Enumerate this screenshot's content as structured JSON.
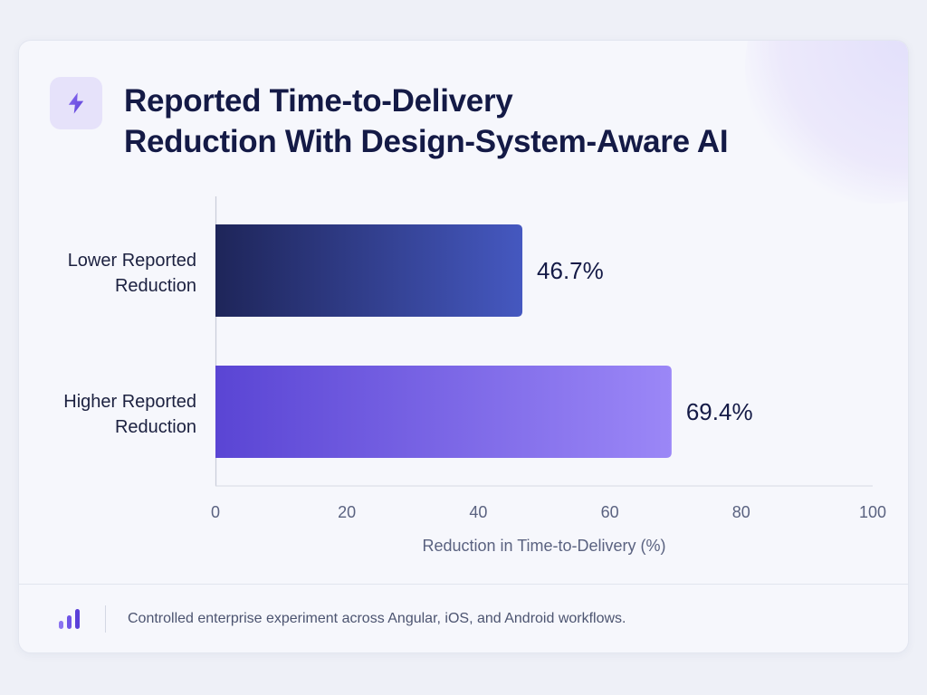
{
  "title_lines": [
    "Reported Time-to-Delivery",
    "Reduction With Design-System-Aware AI"
  ],
  "header_icon": "lightning-bolt-icon",
  "footer": {
    "icon": "bar-chart-icon",
    "note": "Controlled enterprise experiment across Angular, iOS, and Android workflows."
  },
  "colors": {
    "bar_lower": [
      "#1e2559",
      "#4558c0"
    ],
    "bar_higher": [
      "#5a45d4",
      "#9b87f7"
    ],
    "accent": "#7357e8",
    "title": "#141a46"
  },
  "chart_data": {
    "type": "bar",
    "orientation": "horizontal",
    "title": "Reported Time-to-Delivery Reduction With Design-System-Aware AI",
    "categories": [
      [
        "Lower Reported",
        "Reduction"
      ],
      [
        "Higher Reported",
        "Reduction"
      ]
    ],
    "values": [
      46.7,
      69.4
    ],
    "value_labels": [
      "46.7%",
      "69.4%"
    ],
    "xlabel": "Reduction in Time-to-Delivery (%)",
    "ylabel": "",
    "xlim": [
      0,
      100
    ],
    "xticks": [
      0,
      20,
      40,
      60,
      80,
      100
    ],
    "grid": false,
    "legend": "none"
  }
}
